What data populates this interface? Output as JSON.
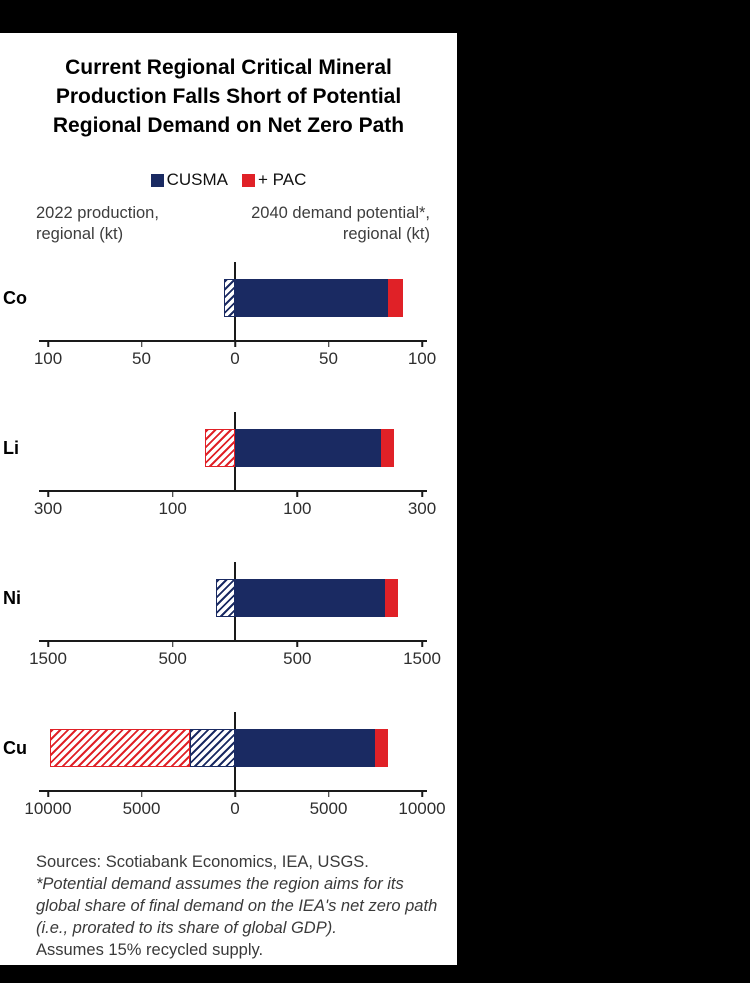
{
  "colors": {
    "navy": "#1a2a62",
    "red": "#e02127",
    "axis": "#1a1a1a"
  },
  "chart_data": {
    "type": "bar",
    "layout": "diverging-horizontal-small-multiples",
    "title": "Current Regional Critical Mineral Production Falls Short of Potential Regional Demand on Net Zero Path",
    "title_lines": [
      "Current Regional Critical Mineral",
      "Production Falls Short of Potential",
      "Regional Demand on Net Zero Path"
    ],
    "legend": [
      {
        "name": "CUSMA",
        "color": "#1a2a62"
      },
      {
        "name": "+ PAC",
        "color": "#e02127"
      }
    ],
    "left_axis_label_lines": [
      "2022 production,",
      "regional  (kt)"
    ],
    "right_axis_label_lines": [
      "2040 demand potential*,",
      "regional (kt)"
    ],
    "unit": "kt",
    "grid": false,
    "charts": [
      {
        "mineral": "Co",
        "axis_max": 100,
        "ticks": [
          {
            "value": -100,
            "label": "100"
          },
          {
            "value": -50,
            "label": "50"
          },
          {
            "value": 0,
            "label": "0"
          },
          {
            "value": 50,
            "label": "50"
          },
          {
            "value": 100,
            "label": "100"
          }
        ],
        "production": [
          {
            "series": "CUSMA",
            "value": 6,
            "color": "navy",
            "fill": "hatched"
          }
        ],
        "demand": [
          {
            "series": "CUSMA",
            "value": 82,
            "color": "navy",
            "fill": "solid"
          },
          {
            "series": "+ PAC",
            "value": 8,
            "color": "red",
            "fill": "solid"
          }
        ]
      },
      {
        "mineral": "Li",
        "axis_max": 300,
        "ticks": [
          {
            "value": -300,
            "label": "300"
          },
          {
            "value": -100,
            "label": "100"
          },
          {
            "value": 100,
            "label": "100"
          },
          {
            "value": 300,
            "label": "300"
          }
        ],
        "production": [
          {
            "series": "+ PAC",
            "value": 48,
            "color": "red",
            "fill": "hatched"
          }
        ],
        "demand": [
          {
            "series": "CUSMA",
            "value": 235,
            "color": "navy",
            "fill": "solid"
          },
          {
            "series": "+ PAC",
            "value": 20,
            "color": "red",
            "fill": "solid"
          }
        ]
      },
      {
        "mineral": "Ni",
        "axis_max": 1500,
        "ticks": [
          {
            "value": -1500,
            "label": "1500"
          },
          {
            "value": -500,
            "label": "500"
          },
          {
            "value": 500,
            "label": "500"
          },
          {
            "value": 1500,
            "label": "1500"
          }
        ],
        "production": [
          {
            "series": "CUSMA",
            "value": 150,
            "color": "navy",
            "fill": "hatched"
          }
        ],
        "demand": [
          {
            "series": "CUSMA",
            "value": 1200,
            "color": "navy",
            "fill": "solid"
          },
          {
            "series": "+ PAC",
            "value": 110,
            "color": "red",
            "fill": "solid"
          }
        ]
      },
      {
        "mineral": "Cu",
        "axis_max": 10000,
        "ticks": [
          {
            "value": -10000,
            "label": "10000"
          },
          {
            "value": -5000,
            "label": "5000"
          },
          {
            "value": 0,
            "label": "0"
          },
          {
            "value": 5000,
            "label": "5000"
          },
          {
            "value": 10000,
            "label": "10000"
          }
        ],
        "production": [
          {
            "series": "CUSMA",
            "value": 2400,
            "color": "navy",
            "fill": "hatched"
          },
          {
            "series": "+ PAC",
            "value": 7500,
            "color": "red",
            "fill": "hatched"
          }
        ],
        "demand": [
          {
            "series": "CUSMA",
            "value": 7500,
            "color": "navy",
            "fill": "solid"
          },
          {
            "series": "+ PAC",
            "value": 700,
            "color": "red",
            "fill": "solid"
          }
        ]
      }
    ]
  },
  "footnote": {
    "sources": "Sources: Scotiabank Economics, IEA, USGS.",
    "note": "*Potential demand assumes the region aims for its global share of final demand on the IEA's net zero path (i.e., prorated to its share of global GDP).",
    "assumption": "Assumes 15% recycled supply."
  }
}
